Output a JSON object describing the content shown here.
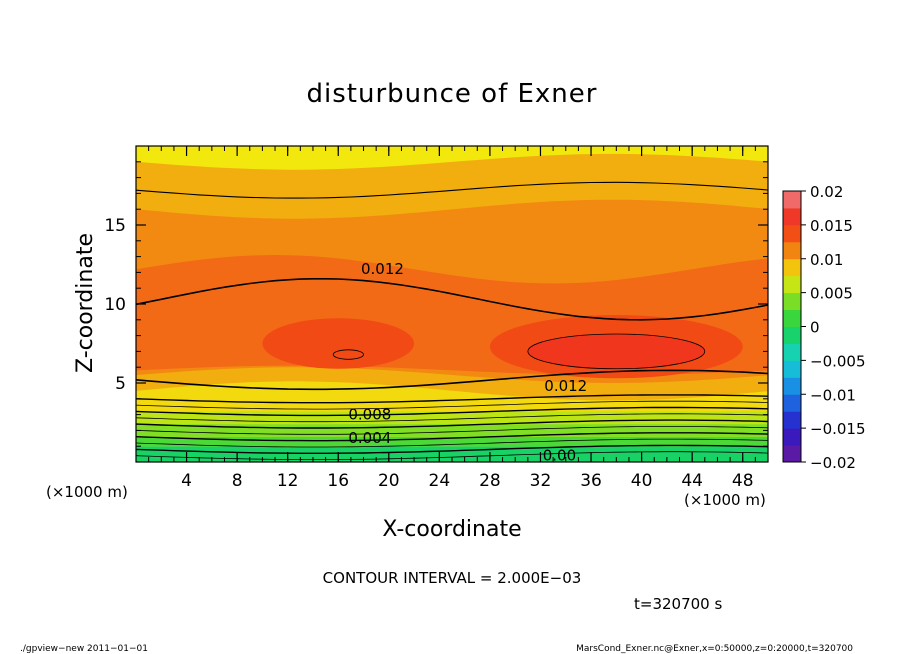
{
  "chart_data": {
    "type": "heatmap",
    "title": "disturbunce of Exner",
    "xlabel": "X-coordinate",
    "ylabel": "Z-coordinate",
    "x_unit_left": "(×1000 m)",
    "x_unit_right": "(×1000 m)",
    "xlim": [
      0,
      50
    ],
    "ylim": [
      0,
      20
    ],
    "x_ticks": [
      4,
      8,
      12,
      16,
      20,
      24,
      28,
      32,
      36,
      40,
      44,
      48
    ],
    "y_ticks": [
      5,
      10,
      15
    ],
    "grid": false,
    "colorbar": {
      "levels": [
        -0.02,
        -0.015,
        -0.01,
        -0.005,
        0,
        0.005,
        0.01,
        0.015,
        0.02
      ],
      "tick_labels": [
        "0.02",
        "0.015",
        "0.01",
        "0.005",
        "0",
        "−0.005",
        "−0.01",
        "−0.015",
        "−0.02"
      ],
      "step": 0.0025
    },
    "contour_labels": [
      "0.012",
      "0.012",
      "0.008",
      "0.004",
      "0.00"
    ],
    "contour_interval_text": "CONTOUR INTERVAL = 2.000E−03",
    "time_text": "t=320700 s",
    "footer_left": "./gpview−new  2011−01−01",
    "footer_right": "MarsCond_Exner.nc@Exner,x=0:50000,z=0:20000,t=320700"
  }
}
